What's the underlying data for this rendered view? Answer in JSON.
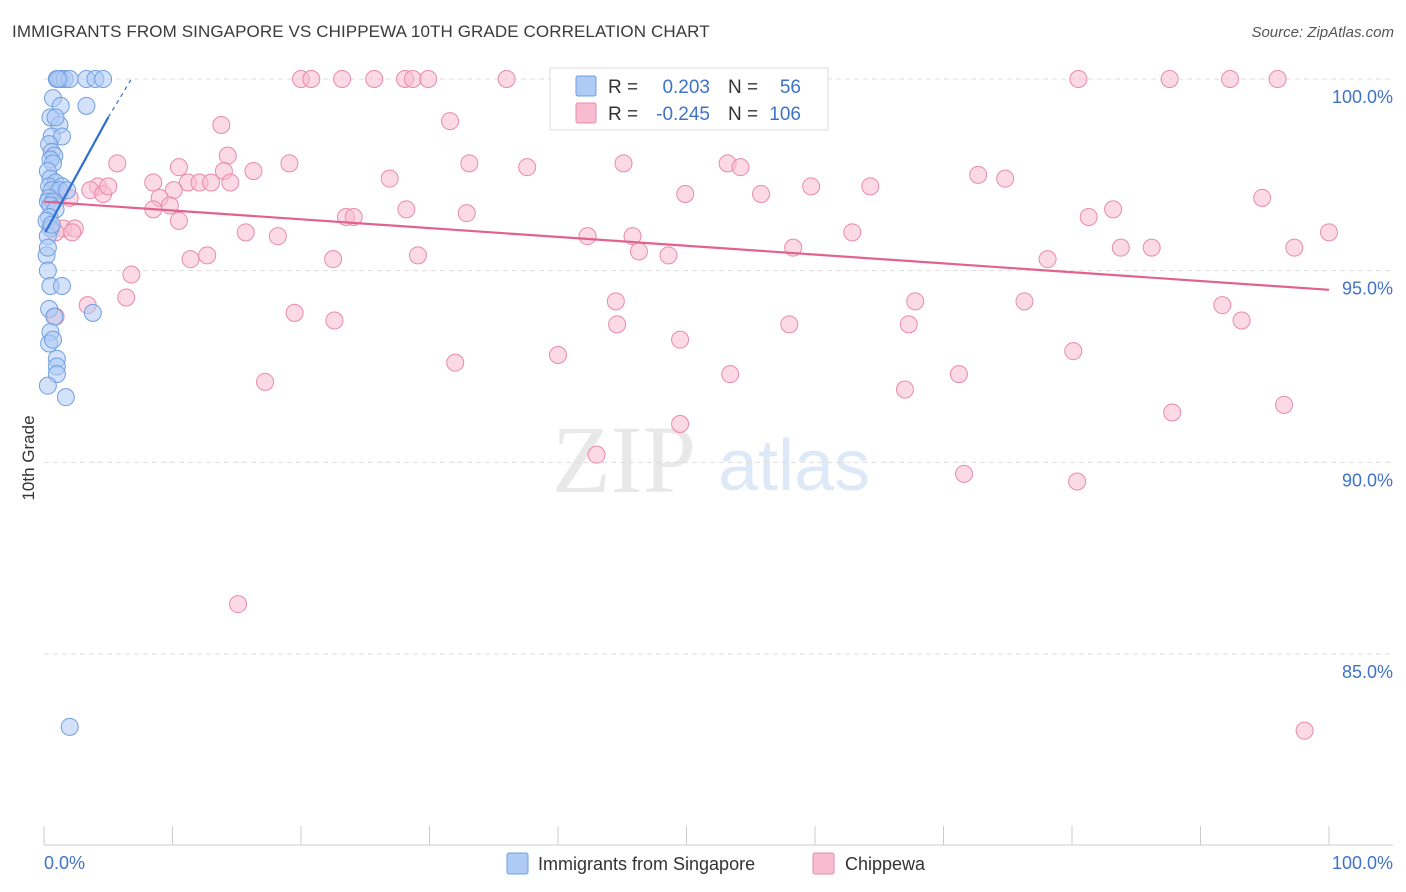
{
  "title": "IMMIGRANTS FROM SINGAPORE VS CHIPPEWA 10TH GRADE CORRELATION CHART",
  "source": "Source: ZipAtlas.com",
  "watermark": {
    "zip": "ZIP",
    "atlas": "atlas"
  },
  "colors": {
    "blue_fill": "#aecbf5",
    "blue_stroke": "#6f9fe0",
    "blue_line": "#2f6fd0",
    "blue_text": "#3f73c8",
    "pink_fill": "#f7bcd0",
    "pink_stroke": "#ea8aaa",
    "pink_line": "#e0628d",
    "grid": "#dddddd",
    "axis_text": "#3f73c8"
  },
  "stats_legend": [
    {
      "r_label": "R =",
      "r_value": "0.203",
      "n_label": "N =",
      "n_value": "56"
    },
    {
      "r_label": "R =",
      "r_value": "-0.245",
      "n_label": "N =",
      "n_value": "106"
    }
  ],
  "chart_data": {
    "type": "scatter",
    "title": "IMMIGRANTS FROM SINGAPORE VS CHIPPEWA 10TH GRADE CORRELATION CHART",
    "xlabel": "",
    "ylabel": "10th Grade",
    "xlim": [
      0,
      100
    ],
    "ylim": [
      80.5,
      100.5
    ],
    "x_tick_labels": [
      "0.0%",
      "100.0%"
    ],
    "y_ticks": [
      100,
      95,
      90,
      85
    ],
    "y_tick_labels": [
      "100.0%",
      "95.0%",
      "90.0%",
      "85.0%"
    ],
    "legend": [
      "Immigrants from Singapore",
      "Chippewa"
    ],
    "series": [
      {
        "name": "Immigrants from Singapore",
        "r": 0.203,
        "n": 56,
        "trend": {
          "x0": 0.1,
          "y0": 96.0,
          "x1": 5.0,
          "y1": 99.0,
          "dash_to_x": 6.8,
          "dash_to_y": 100.0
        },
        "points": [
          [
            1.0,
            100.0
          ],
          [
            1.3,
            100.0
          ],
          [
            1.6,
            100.0
          ],
          [
            2.0,
            100.0
          ],
          [
            3.3,
            100.0
          ],
          [
            4.0,
            100.0
          ],
          [
            4.6,
            100.0
          ],
          [
            1.1,
            100.0
          ],
          [
            0.7,
            99.5
          ],
          [
            1.3,
            99.3
          ],
          [
            3.3,
            99.3
          ],
          [
            0.5,
            99.0
          ],
          [
            1.2,
            98.8
          ],
          [
            0.6,
            98.5
          ],
          [
            1.4,
            98.5
          ],
          [
            0.4,
            98.3
          ],
          [
            0.6,
            98.1
          ],
          [
            0.8,
            98.0
          ],
          [
            0.5,
            97.9
          ],
          [
            0.7,
            97.8
          ],
          [
            0.3,
            97.6
          ],
          [
            0.5,
            97.4
          ],
          [
            0.9,
            97.3
          ],
          [
            0.4,
            97.2
          ],
          [
            1.4,
            97.2
          ],
          [
            0.6,
            97.1
          ],
          [
            1.2,
            97.1
          ],
          [
            0.4,
            96.9
          ],
          [
            0.3,
            96.8
          ],
          [
            0.7,
            96.8
          ],
          [
            0.5,
            96.7
          ],
          [
            0.9,
            96.6
          ],
          [
            0.4,
            96.4
          ],
          [
            0.2,
            96.3
          ],
          [
            0.5,
            96.1
          ],
          [
            0.3,
            95.9
          ],
          [
            0.2,
            95.4
          ],
          [
            0.3,
            95.0
          ],
          [
            0.5,
            94.6
          ],
          [
            1.4,
            94.6
          ],
          [
            0.4,
            94.0
          ],
          [
            0.8,
            93.8
          ],
          [
            3.8,
            93.9
          ],
          [
            0.5,
            93.4
          ],
          [
            0.4,
            93.1
          ],
          [
            0.7,
            93.2
          ],
          [
            1.0,
            92.7
          ],
          [
            1.0,
            92.5
          ],
          [
            1.0,
            92.3
          ],
          [
            0.3,
            92.0
          ],
          [
            1.7,
            91.7
          ],
          [
            2.0,
            83.1
          ],
          [
            0.3,
            95.6
          ],
          [
            0.6,
            96.2
          ],
          [
            1.8,
            97.1
          ],
          [
            0.9,
            99.0
          ]
        ]
      },
      {
        "name": "Chippewa",
        "r": -0.245,
        "n": 106,
        "trend": {
          "x0": 0.0,
          "y0": 96.8,
          "x1": 100.0,
          "y1": 94.5
        },
        "points": [
          [
            20.0,
            100.0
          ],
          [
            20.8,
            100.0
          ],
          [
            23.2,
            100.0
          ],
          [
            25.7,
            100.0
          ],
          [
            28.1,
            100.0
          ],
          [
            28.7,
            100.0
          ],
          [
            29.9,
            100.0
          ],
          [
            36.0,
            100.0
          ],
          [
            80.5,
            100.0
          ],
          [
            87.6,
            100.0
          ],
          [
            92.3,
            100.0
          ],
          [
            96.0,
            100.0
          ],
          [
            13.8,
            98.8
          ],
          [
            31.6,
            98.9
          ],
          [
            14.3,
            98.0
          ],
          [
            5.7,
            97.8
          ],
          [
            10.5,
            97.7
          ],
          [
            14.0,
            97.6
          ],
          [
            16.3,
            97.6
          ],
          [
            19.1,
            97.8
          ],
          [
            33.1,
            97.8
          ],
          [
            37.6,
            97.7
          ],
          [
            45.1,
            97.8
          ],
          [
            53.2,
            97.8
          ],
          [
            54.2,
            97.7
          ],
          [
            72.7,
            97.5
          ],
          [
            74.8,
            97.4
          ],
          [
            26.9,
            97.4
          ],
          [
            11.2,
            97.3
          ],
          [
            12.1,
            97.3
          ],
          [
            13.0,
            97.3
          ],
          [
            14.5,
            97.3
          ],
          [
            4.2,
            97.2
          ],
          [
            3.6,
            97.1
          ],
          [
            8.5,
            97.3
          ],
          [
            10.1,
            97.1
          ],
          [
            59.7,
            97.2
          ],
          [
            55.8,
            97.0
          ],
          [
            49.9,
            97.0
          ],
          [
            9.0,
            96.9
          ],
          [
            9.8,
            96.7
          ],
          [
            2.0,
            96.9
          ],
          [
            4.6,
            97.0
          ],
          [
            94.8,
            96.9
          ],
          [
            23.5,
            96.4
          ],
          [
            28.2,
            96.6
          ],
          [
            32.9,
            96.5
          ],
          [
            24.1,
            96.4
          ],
          [
            81.3,
            96.4
          ],
          [
            83.2,
            96.6
          ],
          [
            10.5,
            96.3
          ],
          [
            1.5,
            96.1
          ],
          [
            2.4,
            96.1
          ],
          [
            0.9,
            96.0
          ],
          [
            15.7,
            96.0
          ],
          [
            18.2,
            95.9
          ],
          [
            42.3,
            95.9
          ],
          [
            45.8,
            95.9
          ],
          [
            62.9,
            96.0
          ],
          [
            100.0,
            96.0
          ],
          [
            58.3,
            95.6
          ],
          [
            78.1,
            95.3
          ],
          [
            83.8,
            95.6
          ],
          [
            86.2,
            95.6
          ],
          [
            97.3,
            95.6
          ],
          [
            46.3,
            95.5
          ],
          [
            48.6,
            95.4
          ],
          [
            22.5,
            95.3
          ],
          [
            29.1,
            95.4
          ],
          [
            11.4,
            95.3
          ],
          [
            12.7,
            95.4
          ],
          [
            6.8,
            94.9
          ],
          [
            6.4,
            94.3
          ],
          [
            3.4,
            94.1
          ],
          [
            44.5,
            94.2
          ],
          [
            67.8,
            94.2
          ],
          [
            76.3,
            94.2
          ],
          [
            91.7,
            94.1
          ],
          [
            0.9,
            93.8
          ],
          [
            19.5,
            93.9
          ],
          [
            22.6,
            93.7
          ],
          [
            44.6,
            93.6
          ],
          [
            58.0,
            93.6
          ],
          [
            67.3,
            93.6
          ],
          [
            93.2,
            93.7
          ],
          [
            49.5,
            93.2
          ],
          [
            40.0,
            92.8
          ],
          [
            80.1,
            92.9
          ],
          [
            32.0,
            92.6
          ],
          [
            53.4,
            92.3
          ],
          [
            71.2,
            92.3
          ],
          [
            17.2,
            92.1
          ],
          [
            67.0,
            91.9
          ],
          [
            96.5,
            91.5
          ],
          [
            87.8,
            91.3
          ],
          [
            49.5,
            91.0
          ],
          [
            43.0,
            90.2
          ],
          [
            71.6,
            89.7
          ],
          [
            80.4,
            89.5
          ],
          [
            15.1,
            86.3
          ],
          [
            98.1,
            83.0
          ],
          [
            8.5,
            96.6
          ],
          [
            2.2,
            96.0
          ],
          [
            64.3,
            97.2
          ],
          [
            1.2,
            97.0
          ],
          [
            5.0,
            97.2
          ]
        ]
      }
    ]
  }
}
